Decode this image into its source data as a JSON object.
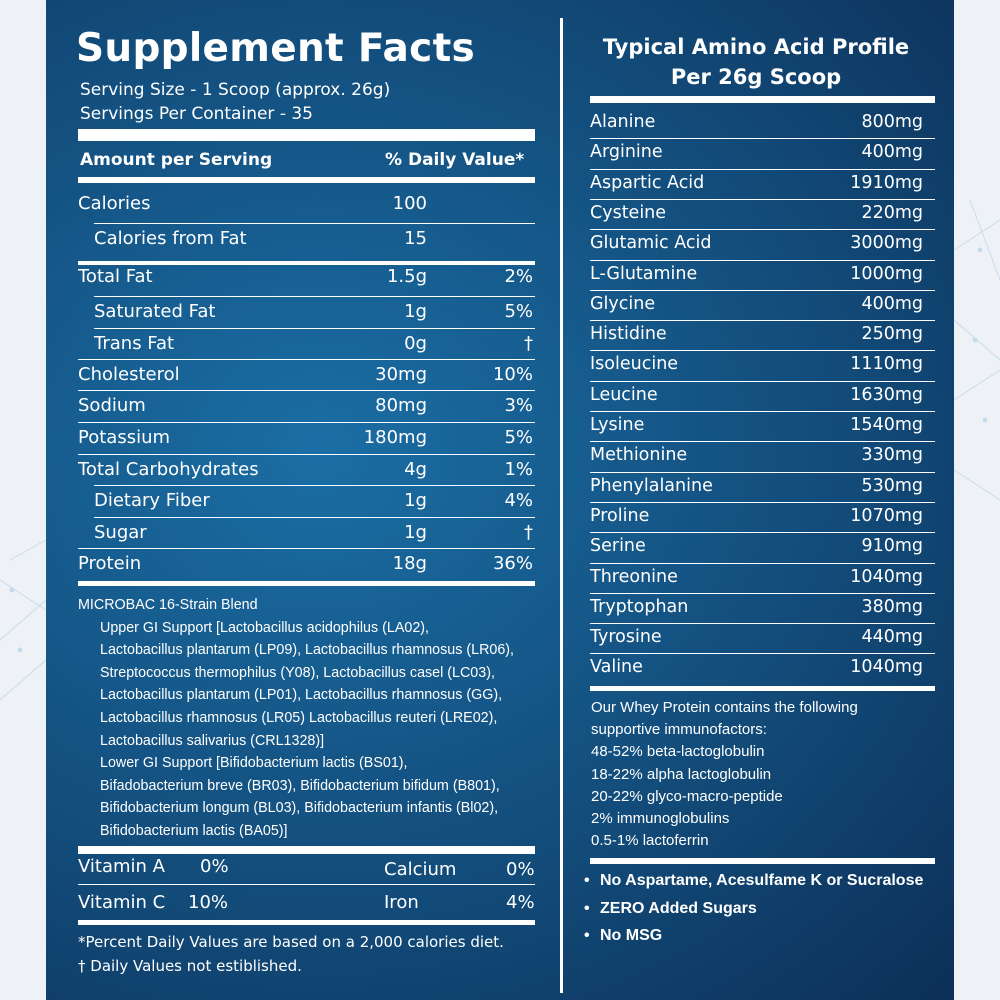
{
  "supplement_facts": {
    "title": "Supplement Facts",
    "serving_size": "Serving  Size - 1 Scoop (approx. 26g)",
    "servings_per_container": "Servings Per Container - 35",
    "header_amount": "Amount per Serving",
    "header_dv": "% Daily Value*",
    "rows": [
      {
        "label": "Calories",
        "amount": "100",
        "dv": "",
        "indent": false
      },
      {
        "label": "Calories from Fat",
        "amount": "15",
        "dv": "",
        "indent": true
      },
      {
        "label": "Total Fat",
        "amount": "1.5g",
        "dv": "2%",
        "indent": false
      },
      {
        "label": "Saturated Fat",
        "amount": "1g",
        "dv": "5%",
        "indent": true
      },
      {
        "label": "Trans Fat",
        "amount": "0g",
        "dv": "†",
        "indent": true
      },
      {
        "label": "Cholesterol",
        "amount": "30mg",
        "dv": "10%",
        "indent": false
      },
      {
        "label": "Sodium",
        "amount": "80mg",
        "dv": "3%",
        "indent": false
      },
      {
        "label": "Potassium",
        "amount": "180mg",
        "dv": "5%",
        "indent": false
      },
      {
        "label": "Total Carbohydrates",
        "amount": "4g",
        "dv": "1%",
        "indent": false
      },
      {
        "label": "Dietary Fiber",
        "amount": "1g",
        "dv": "4%",
        "indent": true
      },
      {
        "label": "Sugar",
        "amount": "1g",
        "dv": "†",
        "indent": true
      },
      {
        "label": "Protein",
        "amount": "18g",
        "dv": "36%",
        "indent": false
      }
    ],
    "blend_title": "MICROBAC 16-Strain Blend",
    "blend_lines": [
      "Upper GI Support [Lactobacillus acidophilus (LA02),",
      "Lactobacillus plantarum (LP09), Lactobacillus rhamnosus (LR06),",
      "Streptococcus thermophilus (Y08), Lactobacillus casel (LC03),",
      "Lactobacillus plantarum (LP01),  Lactobacillus rhamnosus (GG),",
      "Lactobacillus rhamnosus (LR05) Lactobacillus reuteri (LRE02),",
      "Lactobacillus salivarius (CRL1328)]",
      "Lower GI Support [Bifidobacterium lactis (BS01),",
      "Bifadobacterium breve (BR03), Bifidobacterium bifidum (B801),",
      "Bifidobacterium longum (BL03), Bifidobacterium infantis (Bl02),",
      "Bifidobacterium lactis (BA05)]"
    ],
    "vitamins": [
      {
        "label": "Vitamin A",
        "value": "0%",
        "label2": "Calcium",
        "value2": "0%"
      },
      {
        "label": "Vitamin C",
        "value": "10%",
        "label2": "Iron",
        "value2": "4%"
      }
    ],
    "footnote1": "*Percent Daily Values are based on a 2,000 calories diet.",
    "footnote2": "† Daily Values not estiblished."
  },
  "amino_profile": {
    "title_line1": "Typical Amino Acid Profile",
    "title_line2": "Per 26g Scoop",
    "rows": [
      {
        "name": "Alanine",
        "value": "800mg"
      },
      {
        "name": "Arginine",
        "value": "400mg"
      },
      {
        "name": "Aspartic Acid",
        "value": "1910mg"
      },
      {
        "name": "Cysteine",
        "value": "220mg"
      },
      {
        "name": "Glutamic Acid",
        "value": "3000mg"
      },
      {
        "name": "L-Glutamine",
        "value": "1000mg"
      },
      {
        "name": "Glycine",
        "value": "400mg"
      },
      {
        "name": "Histidine",
        "value": "250mg"
      },
      {
        "name": "Isoleucine",
        "value": "1110mg"
      },
      {
        "name": "Leucine",
        "value": "1630mg"
      },
      {
        "name": "Lysine",
        "value": "1540mg"
      },
      {
        "name": "Methionine",
        "value": "330mg"
      },
      {
        "name": "Phenylalanine",
        "value": "530mg"
      },
      {
        "name": "Proline",
        "value": "1070mg"
      },
      {
        "name": "Serine",
        "value": "910mg"
      },
      {
        "name": "Threonine",
        "value": "1040mg"
      },
      {
        "name": "Tryptophan",
        "value": "380mg"
      },
      {
        "name": "Tyrosine",
        "value": "440mg"
      },
      {
        "name": "Valine",
        "value": "1040mg"
      }
    ],
    "immuno_lines": [
      "Our Whey Protein contains the following",
      "supportive immunofactors:",
      "48-52% beta-lactoglobulin",
      "18-22% alpha lactoglobulin",
      "20-22% glyco-macro-peptide",
      "2% immunoglobulins",
      "0.5-1% lactoferrin"
    ],
    "claims": [
      "No Aspartame, Acesulfame K or Sucralose",
      "ZERO Added Sugars",
      "No MSG"
    ]
  },
  "colors": {
    "panel_center": "#1b6ea5",
    "panel_edge": "#0c2f57",
    "text": "#ffffff",
    "outer_background": "#eef2f6"
  }
}
